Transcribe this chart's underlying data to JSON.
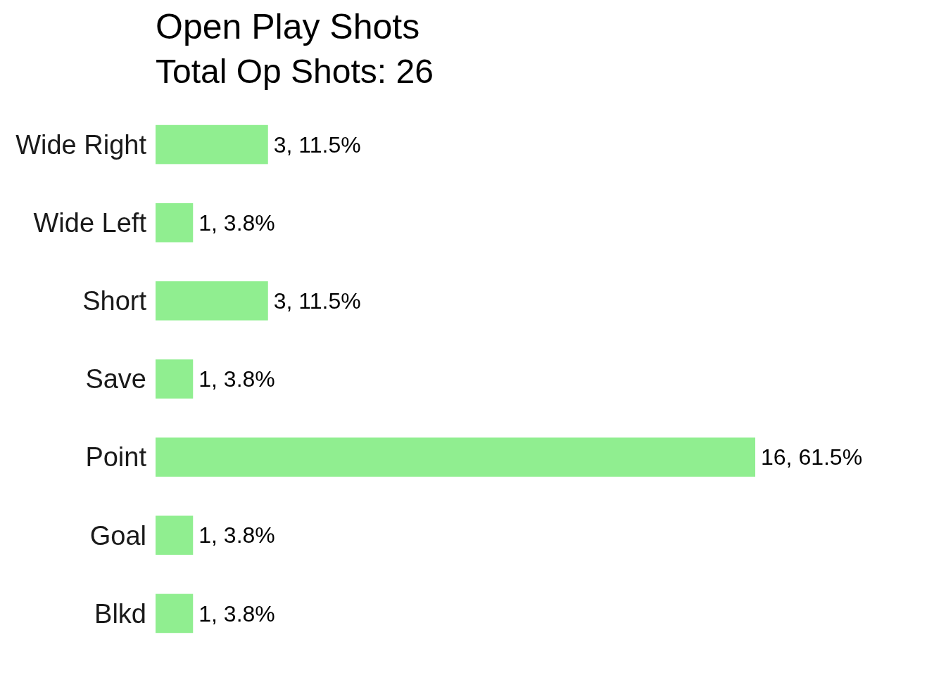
{
  "chart_data": {
    "type": "bar",
    "orientation": "horizontal",
    "title": "Open Play Shots",
    "subtitle": "Total Op Shots: 26",
    "categories": [
      "Wide Right",
      "Wide Left",
      "Short",
      "Save",
      "Point",
      "Goal",
      "Blkd"
    ],
    "values": [
      3,
      1,
      3,
      1,
      16,
      1,
      1
    ],
    "value_labels": [
      "3, 11.5%",
      "1, 3.8%",
      "3, 11.5%",
      "1, 3.8%",
      "16, 61.5%",
      "1, 3.8%",
      "1, 3.8%"
    ],
    "color": "#90ee90"
  }
}
